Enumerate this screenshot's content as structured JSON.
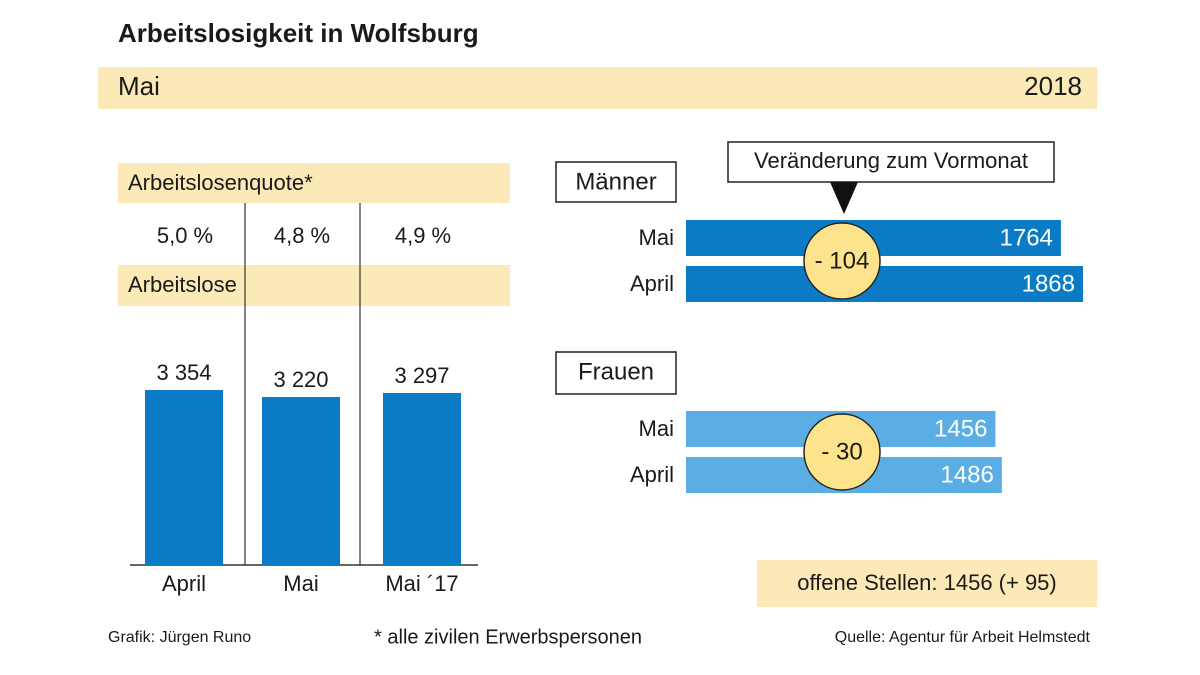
{
  "header": {
    "title": "Arbeitslosigkeit in Wolfsburg",
    "month": "Mai",
    "year": "2018"
  },
  "chart_data": [
    {
      "type": "figures",
      "title": "Arbeitslosenquote*",
      "values": [
        5.0,
        4.8,
        4.9
      ],
      "value_labels": [
        "5,0 %",
        "4,8 %",
        "4,9 %"
      ]
    },
    {
      "type": "bar",
      "title": "Arbeitslose",
      "categories": [
        "April",
        "Mai",
        "Mai ´17"
      ],
      "values": [
        3354,
        3220,
        3297
      ],
      "value_labels": [
        "3 354",
        "3 220",
        "3 297"
      ],
      "color": "#0a7bc4"
    },
    {
      "type": "hbar",
      "title": "Männer",
      "annotation": "Veränderung zum Vormonat",
      "categories": [
        "Mai",
        "April"
      ],
      "values": [
        1764,
        1868
      ],
      "color": "#0a7bc4",
      "change": {
        "value": -104,
        "label": "- 104"
      }
    },
    {
      "type": "hbar",
      "title": "Frauen",
      "categories": [
        "Mai",
        "April"
      ],
      "values": [
        1456,
        1486
      ],
      "color": "#5aaee3",
      "change": {
        "value": -30,
        "label": "- 30"
      }
    }
  ],
  "note": "offene Stellen: 1456 (+ 95)",
  "footer": {
    "credit": "Grafik: Jürgen Runo",
    "footnote": "* alle zivilen Erwerbspersonen",
    "source": "Quelle: Agentur für Arbeit Helmstedt"
  }
}
